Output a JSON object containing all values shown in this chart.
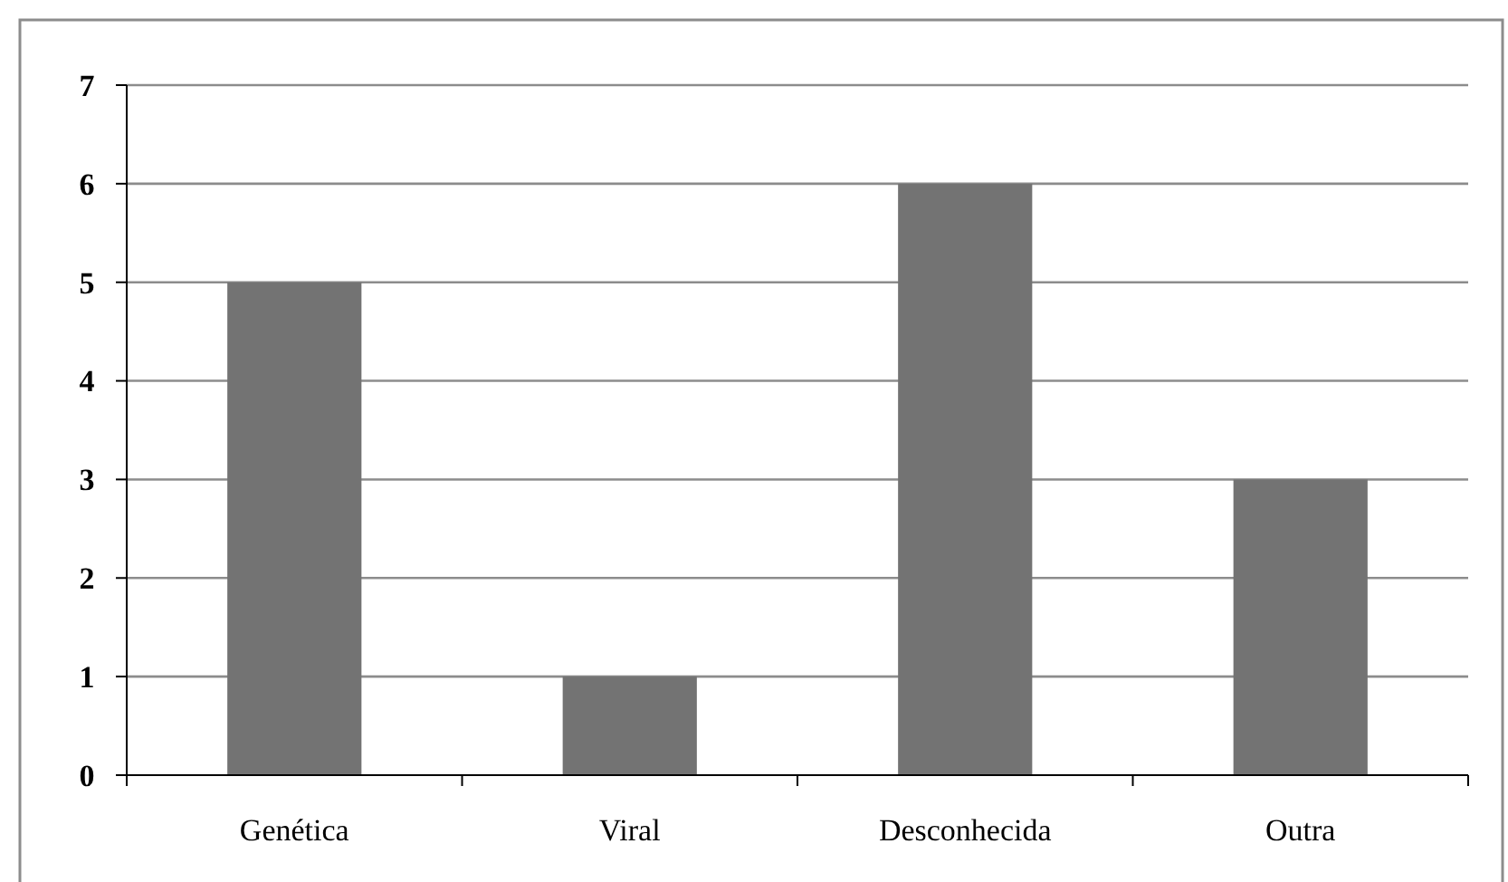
{
  "chart_data": {
    "type": "bar",
    "categories": [
      "Genética",
      "Viral",
      "Desconhecida",
      "Outra"
    ],
    "values": [
      5,
      1,
      6,
      3
    ],
    "color": "#737373",
    "ylim": [
      0,
      7
    ],
    "yticks": [
      0,
      1,
      2,
      3,
      4,
      5,
      6,
      7
    ],
    "grid": "y"
  }
}
